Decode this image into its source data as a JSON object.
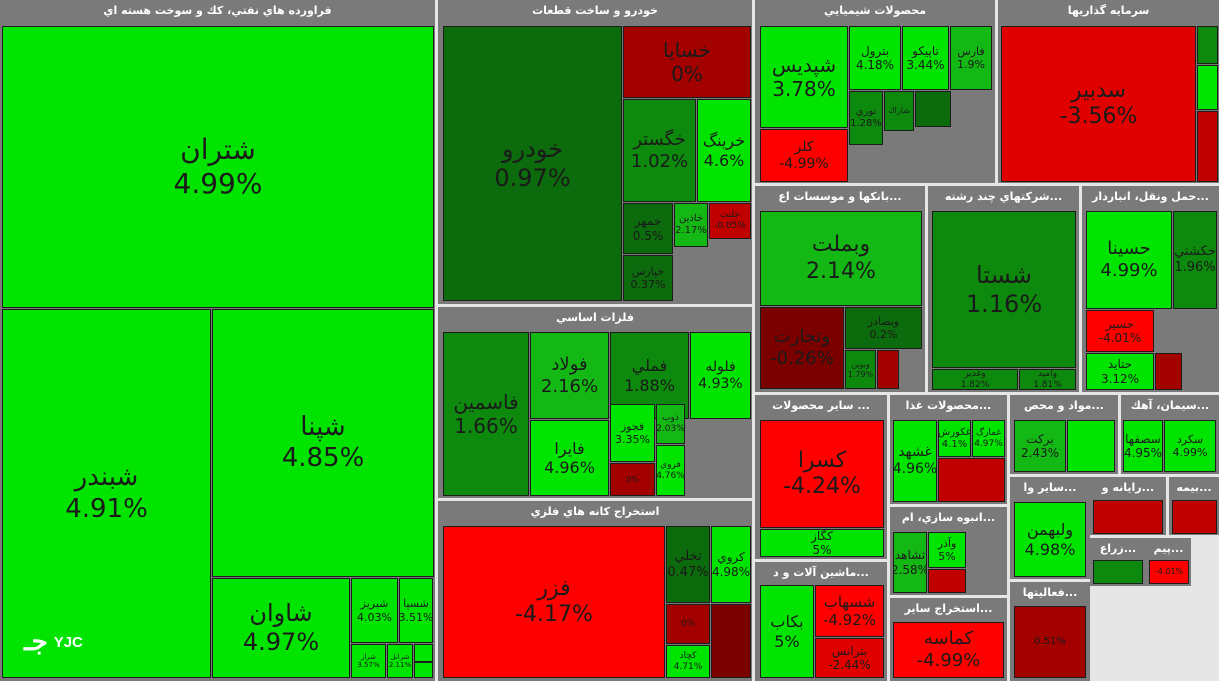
{
  "logo": {
    "mark": "جـ",
    "text": "YJC"
  },
  "chart_data": {
    "type": "treemap",
    "sectors": [
      {
        "name": "فراورده هاي نفتي، كك و سوخت هسته اي",
        "tiles": [
          {
            "symbol": "شتران",
            "change": "4.99%",
            "color": "#00e400"
          },
          {
            "symbol": "شبندر",
            "change": "4.91%",
            "color": "#00e400"
          },
          {
            "symbol": "شپنا",
            "change": "4.85%",
            "color": "#00e400"
          },
          {
            "symbol": "شاوان",
            "change": "4.97%",
            "color": "#00e400"
          },
          {
            "symbol": "شبريز",
            "change": "4.03%",
            "color": "#00e400"
          },
          {
            "symbol": "شسپا",
            "change": "3.51%",
            "color": "#00e400"
          },
          {
            "symbol": "شراز",
            "change": "3.57%",
            "color": "#00e400"
          },
          {
            "symbol": "شرانل",
            "change": "2.11%",
            "color": "#00e400"
          },
          {
            "symbol": "",
            "change": "",
            "color": "#00e400"
          },
          {
            "symbol": "",
            "change": "",
            "color": "#00e400"
          }
        ]
      },
      {
        "name": "خودرو و ساخت قطعات",
        "tiles": [
          {
            "symbol": "خودرو",
            "change": "0.97%",
            "color": "#0c6b0c"
          },
          {
            "symbol": "خسايا",
            "change": "0%",
            "color": "#a30000"
          },
          {
            "symbol": "خگستر",
            "change": "1.02%",
            "color": "#0d8a0d"
          },
          {
            "symbol": "خرينگ",
            "change": "4.6%",
            "color": "#00e400"
          },
          {
            "symbol": "خمهر",
            "change": "0.5%",
            "color": "#0c6b0c"
          },
          {
            "symbol": "خاذين",
            "change": "2.17%",
            "color": "#14b814"
          },
          {
            "symbol": "خلنت",
            "change": "-0.05%",
            "color": "#c00000"
          },
          {
            "symbol": "خپارس",
            "change": "0.37%",
            "color": "#0c6b0c"
          }
        ]
      },
      {
        "name": "محصولات شيميايي",
        "tiles": [
          {
            "symbol": "شپديس",
            "change": "3.78%",
            "color": "#00e400"
          },
          {
            "symbol": "بترول",
            "change": "4.18%",
            "color": "#00e400"
          },
          {
            "symbol": "تاپيكو",
            "change": "3.44%",
            "color": "#00e400"
          },
          {
            "symbol": "فارس",
            "change": "1.9%",
            "color": "#14b814"
          },
          {
            "symbol": "كلر",
            "change": "-4.99%",
            "color": "#ff0000"
          },
          {
            "symbol": "نوري",
            "change": "1.28%",
            "color": "#0d8a0d"
          },
          {
            "symbol": "شاراك",
            "change": "",
            "color": "#0d8a0d"
          },
          {
            "symbol": "",
            "change": "",
            "color": "#0c6b0c"
          }
        ]
      },
      {
        "name": "سرمايه گذاريها",
        "tiles": [
          {
            "symbol": "سدبير",
            "change": "-3.56%",
            "color": "#e00000"
          },
          {
            "symbol": "",
            "change": "",
            "color": "#0d8a0d"
          },
          {
            "symbol": "",
            "change": "",
            "color": "#00e400"
          },
          {
            "symbol": "",
            "change": "",
            "color": "#c00000"
          }
        ]
      },
      {
        "name": "بانكها و موسسات اع...",
        "tiles": [
          {
            "symbol": "وبملت",
            "change": "2.14%",
            "color": "#14b814"
          },
          {
            "symbol": "وتجارت",
            "change": "-0.26%",
            "color": "#7a0000"
          },
          {
            "symbol": "وبصادر",
            "change": "0.2%",
            "color": "#0c6b0c"
          },
          {
            "symbol": "وبوين",
            "change": "1.79%",
            "color": "#0d8a0d"
          },
          {
            "symbol": "",
            "change": "",
            "color": "#a30000"
          }
        ]
      },
      {
        "name": "شركتهاي چند رشته...",
        "tiles": [
          {
            "symbol": "شستا",
            "change": "1.16%",
            "color": "#0d8a0d"
          },
          {
            "symbol": "وغدير",
            "change": "1.82%",
            "color": "#0d8a0d"
          },
          {
            "symbol": "واميد",
            "change": "1.81%",
            "color": "#0d8a0d"
          }
        ]
      },
      {
        "name": "حمل ونقل، انباردار...",
        "tiles": [
          {
            "symbol": "حسينا",
            "change": "4.99%",
            "color": "#00e400"
          },
          {
            "symbol": "حكشتي",
            "change": "1.96%",
            "color": "#0d8a0d"
          },
          {
            "symbol": "حسير",
            "change": "-4.01%",
            "color": "#ff0000"
          },
          {
            "symbol": "حتايد",
            "change": "3.12%",
            "color": "#00e400"
          },
          {
            "symbol": "",
            "change": "",
            "color": "#a30000"
          }
        ]
      },
      {
        "name": "فلزات اساسي",
        "tiles": [
          {
            "symbol": "فاسمين",
            "change": "1.66%",
            "color": "#0d8a0d"
          },
          {
            "symbol": "فولاد",
            "change": "2.16%",
            "color": "#14b814"
          },
          {
            "symbol": "فملي",
            "change": "1.88%",
            "color": "#0d8a0d"
          },
          {
            "symbol": "فلوله",
            "change": "4.93%",
            "color": "#00e400"
          },
          {
            "symbol": "فايرا",
            "change": "4.96%",
            "color": "#00e400"
          },
          {
            "symbol": "فجوز",
            "change": "3.35%",
            "color": "#00e400"
          },
          {
            "symbol": "ذوب",
            "change": "2.03%",
            "color": "#14b814"
          },
          {
            "symbol": "فروي",
            "change": "4.76%",
            "color": "#00e400"
          },
          {
            "symbol": "",
            "change": "0%",
            "color": "#a30000"
          }
        ]
      },
      {
        "name": "استخراج كانه هاي فلزي",
        "tiles": [
          {
            "symbol": "فزر",
            "change": "-4.17%",
            "color": "#ff0000"
          },
          {
            "symbol": "تخلي",
            "change": "0.47%",
            "color": "#0c6b0c"
          },
          {
            "symbol": "كروي",
            "change": "4.98%",
            "color": "#00e400"
          },
          {
            "symbol": "",
            "change": "0%",
            "color": "#a30000"
          },
          {
            "symbol": "كچاد",
            "change": "4.71%",
            "color": "#00e400"
          },
          {
            "symbol": "",
            "change": "",
            "color": "#7a0000"
          }
        ]
      },
      {
        "name": "سایر محصولات ...",
        "tiles": [
          {
            "symbol": "كسرا",
            "change": "-4.24%",
            "color": "#ff0000"
          },
          {
            "symbol": "كگاز",
            "change": "5%",
            "color": "#00e400"
          }
        ]
      },
      {
        "name": "محصولات غذا...",
        "tiles": [
          {
            "symbol": "غشهد",
            "change": "4.96%",
            "color": "#00e400"
          },
          {
            "symbol": "غكورش",
            "change": "4.1%",
            "color": "#00e400"
          },
          {
            "symbol": "غمارگ",
            "change": "4.97%",
            "color": "#00e400"
          },
          {
            "symbol": "",
            "change": "",
            "color": "#c00000"
          }
        ]
      },
      {
        "name": "مواد و محص...",
        "tiles": [
          {
            "symbol": "بركت",
            "change": "2.43%",
            "color": "#14b814"
          },
          {
            "symbol": "",
            "change": "",
            "color": "#00e400"
          }
        ]
      },
      {
        "name": "سيمان، آهك...",
        "tiles": [
          {
            "symbol": "سصفها",
            "change": "4.95%",
            "color": "#00e400"
          },
          {
            "symbol": "سكرد",
            "change": "4.99%",
            "color": "#00e400"
          }
        ]
      },
      {
        "name": "انبوه سازي، ام...",
        "tiles": [
          {
            "symbol": "ثشاهد",
            "change": "2.58%",
            "color": "#14b814"
          },
          {
            "symbol": "وآذر",
            "change": "5%",
            "color": "#00e400"
          },
          {
            "symbol": "",
            "change": "",
            "color": "#c00000"
          }
        ]
      },
      {
        "name": "سایر وا...",
        "tiles": [
          {
            "symbol": "ولبهمن",
            "change": "4.98%",
            "color": "#00e400"
          }
        ]
      },
      {
        "name": "رايانه و...",
        "tiles": [
          {
            "symbol": "",
            "change": "",
            "color": "#c00000"
          }
        ]
      },
      {
        "name": "بيمه...",
        "tiles": [
          {
            "symbol": "",
            "change": "",
            "color": "#c00000"
          }
        ]
      },
      {
        "name": "ماشين آلات و د...",
        "tiles": [
          {
            "symbol": "بكاب",
            "change": "5%",
            "color": "#00e400"
          },
          {
            "symbol": "شسهاب",
            "change": "-4.92%",
            "color": "#ff0000"
          },
          {
            "symbol": "بترانس",
            "change": "-2.44%",
            "color": "#e00000"
          }
        ]
      },
      {
        "name": "استخراج ساير...",
        "tiles": [
          {
            "symbol": "كماسه",
            "change": "-4.99%",
            "color": "#ff0000"
          }
        ]
      },
      {
        "name": "فعاليتها...",
        "tiles": [
          {
            "symbol": "",
            "change": "0.51%",
            "color": "#a30000"
          }
        ]
      },
      {
        "name": "زراع...",
        "tiles": [
          {
            "symbol": "",
            "change": "",
            "color": "#0d8a0d"
          }
        ]
      },
      {
        "name": "پيم...",
        "tiles": [
          {
            "symbol": "",
            "change": "-4.01%",
            "color": "#ff0000"
          }
        ]
      }
    ]
  }
}
